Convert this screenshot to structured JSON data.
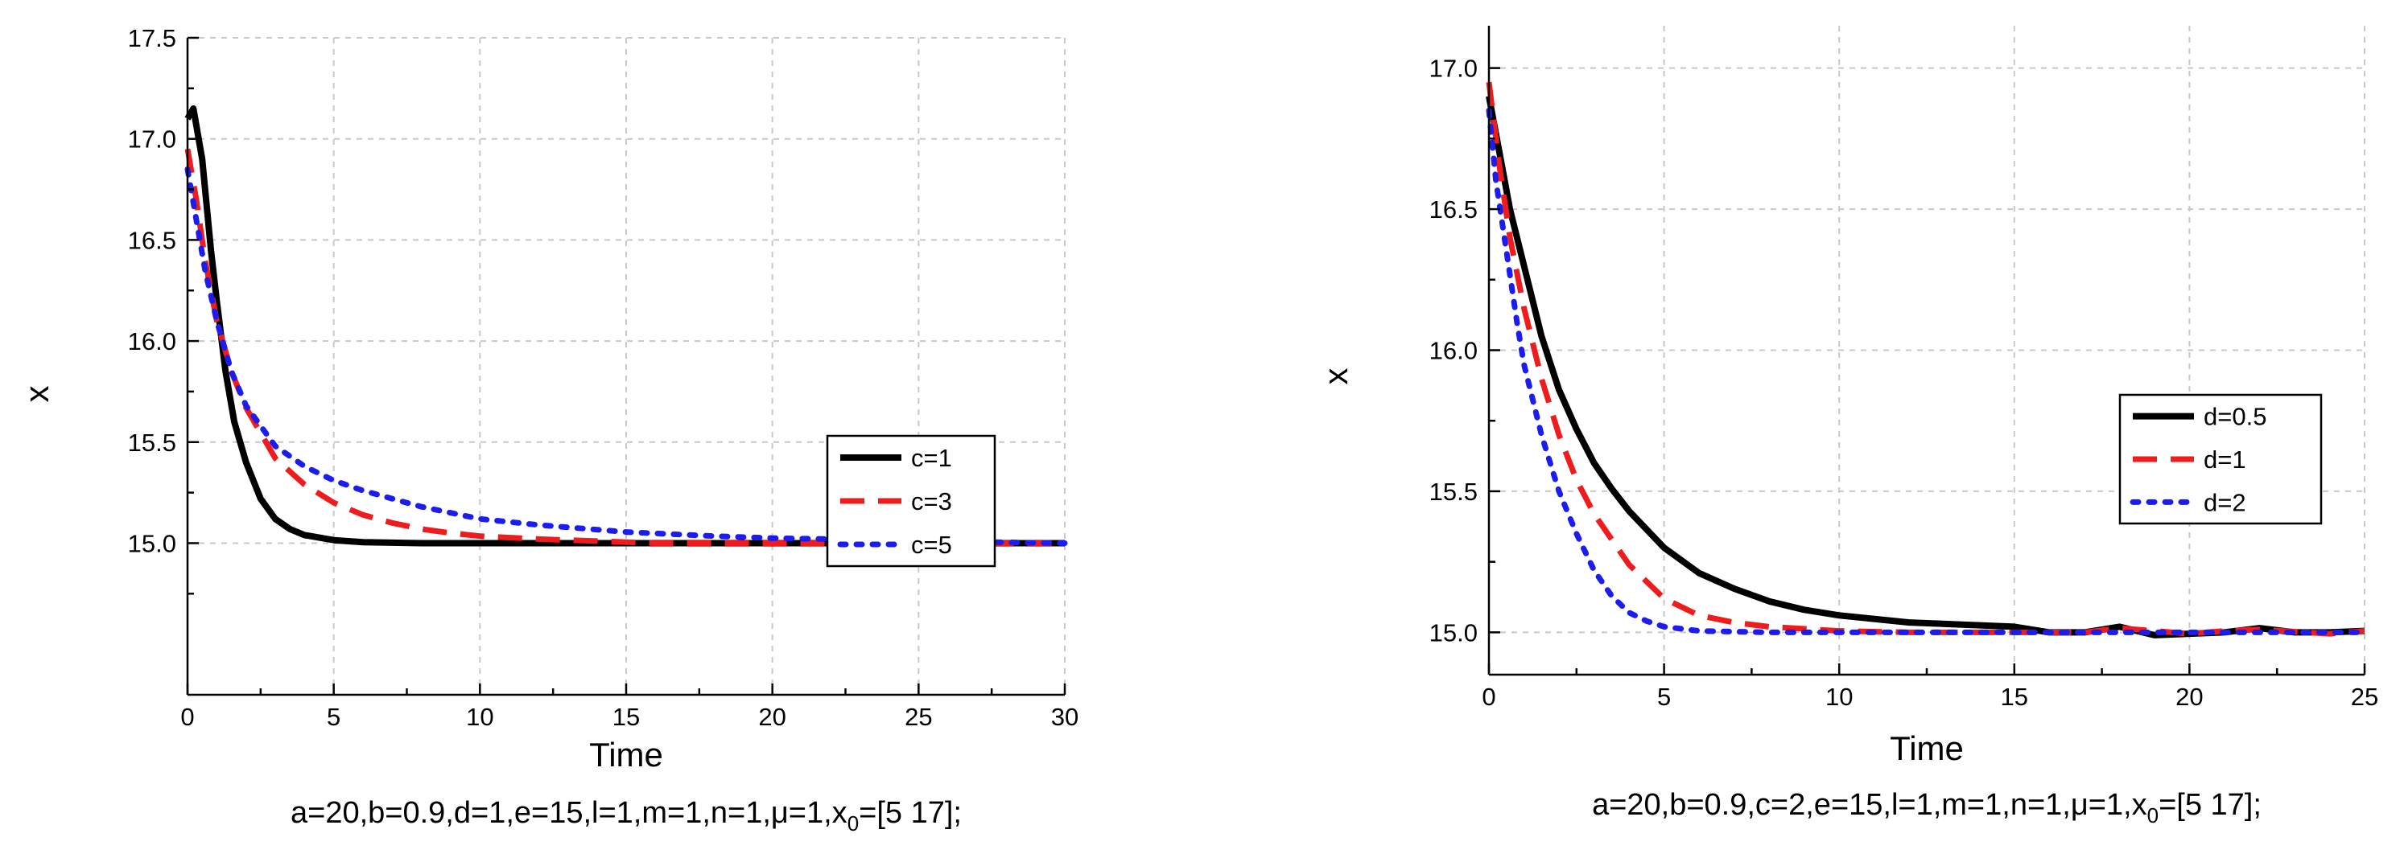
{
  "chart_data": [
    {
      "type": "line",
      "id": "left",
      "xlabel": "Time",
      "ylabel": "x",
      "xlim": [
        0,
        30
      ],
      "ylim": [
        14.25,
        17.5
      ],
      "xticks": [
        0,
        5,
        10,
        15,
        20,
        25,
        30
      ],
      "yticks": [
        15.0,
        15.5,
        16.0,
        16.5,
        17.0,
        17.5
      ],
      "ytick_labels": [
        "15.0",
        "15.5",
        "16.0",
        "16.5",
        "17.0",
        "17.5"
      ],
      "caption": {
        "text": "a=20,b=0.9,d=1,e=15,l=1,m=1,n=1,μ=1,x",
        "sub": "0",
        "tail": "=[5 17];"
      },
      "legend": {
        "position": "center-right"
      },
      "series": [
        {
          "name": "c=1",
          "color": "#000000",
          "style": "solid",
          "x": [
            0,
            0.2,
            0.5,
            0.8,
            1.0,
            1.3,
            1.6,
            2.0,
            2.5,
            3.0,
            3.5,
            4.0,
            5.0,
            6.0,
            8.0,
            10,
            15,
            20,
            25,
            30
          ],
          "y": [
            17.1,
            17.15,
            16.9,
            16.45,
            16.2,
            15.85,
            15.6,
            15.4,
            15.22,
            15.12,
            15.07,
            15.04,
            15.015,
            15.005,
            15.0,
            15.0,
            15.0,
            15.0,
            15.0,
            15.0
          ]
        },
        {
          "name": "c=3",
          "color": "#ee1c1c",
          "style": "dashed",
          "x": [
            0,
            0.3,
            0.6,
            1.0,
            1.5,
            2.0,
            3.0,
            4.0,
            5.0,
            6.0,
            7.0,
            8.0,
            9.0,
            10,
            12,
            14,
            16,
            20,
            25,
            30
          ],
          "y": [
            16.95,
            16.7,
            16.4,
            16.1,
            15.85,
            15.67,
            15.42,
            15.29,
            15.2,
            15.14,
            15.1,
            15.07,
            15.05,
            15.035,
            15.02,
            15.01,
            15.0,
            15.0,
            15.0,
            15.0
          ]
        },
        {
          "name": "c=5",
          "color": "#1c1cee",
          "style": "dotted",
          "x": [
            0,
            0.3,
            0.6,
            1.0,
            1.5,
            2.0,
            3.0,
            4.0,
            5.0,
            6.0,
            8.0,
            10,
            12,
            15,
            18,
            20,
            22,
            25,
            30
          ],
          "y": [
            16.85,
            16.6,
            16.35,
            16.1,
            15.85,
            15.68,
            15.48,
            15.38,
            15.31,
            15.26,
            15.18,
            15.12,
            15.09,
            15.055,
            15.035,
            15.025,
            15.02,
            15.01,
            15.0
          ]
        }
      ]
    },
    {
      "type": "line",
      "id": "right",
      "xlabel": "Time",
      "ylabel": "x",
      "xlim": [
        0,
        25
      ],
      "ylim": [
        14.85,
        17.15
      ],
      "xticks": [
        0,
        5,
        10,
        15,
        20,
        25
      ],
      "yticks": [
        15.0,
        15.5,
        16.0,
        16.5,
        17.0
      ],
      "ytick_labels": [
        "15.0",
        "15.5",
        "16.0",
        "16.5",
        "17.0"
      ],
      "caption": {
        "text": "a=20,b=0.9,c=2,e=15,l=1,m=1,n=1,μ=1,x",
        "sub": "0",
        "tail": "=[5 17];"
      },
      "legend": {
        "position": "center-right"
      },
      "series": [
        {
          "name": "d=0.5",
          "color": "#000000",
          "style": "solid",
          "x": [
            0,
            0.3,
            0.6,
            1.0,
            1.5,
            2.0,
            2.5,
            3.0,
            3.5,
            4.0,
            5.0,
            6.0,
            7.0,
            8.0,
            9.0,
            10,
            12,
            14,
            15,
            16,
            17,
            18,
            19,
            20,
            21,
            22,
            23,
            24,
            25
          ],
          "y": [
            16.9,
            16.7,
            16.5,
            16.3,
            16.05,
            15.86,
            15.72,
            15.6,
            15.51,
            15.43,
            15.3,
            15.21,
            15.155,
            15.11,
            15.08,
            15.06,
            15.035,
            15.025,
            15.02,
            15.0,
            15.0,
            15.02,
            14.99,
            14.995,
            15.0,
            15.015,
            15.0,
            15.0,
            15.005
          ]
        },
        {
          "name": "d=1",
          "color": "#ee1c1c",
          "style": "dashed",
          "x": [
            0,
            0.3,
            0.6,
            1.0,
            1.5,
            2.0,
            2.5,
            3.0,
            4.0,
            5.0,
            6.0,
            7.0,
            8.0,
            10,
            12,
            15,
            17,
            18,
            20,
            21,
            22,
            24,
            25
          ],
          "y": [
            16.95,
            16.65,
            16.4,
            16.15,
            15.9,
            15.7,
            15.54,
            15.42,
            15.24,
            15.12,
            15.06,
            15.035,
            15.02,
            15.005,
            15.0,
            15.0,
            15.0,
            15.015,
            14.995,
            15.005,
            15.01,
            14.995,
            15.005
          ]
        },
        {
          "name": "d=2",
          "color": "#1c1cee",
          "style": "dotted",
          "x": [
            0,
            0.2,
            0.5,
            0.8,
            1.0,
            1.5,
            2.0,
            2.5,
            3.0,
            3.5,
            4.0,
            4.5,
            5.0,
            6.0,
            8.0,
            10,
            15,
            20,
            25
          ],
          "y": [
            16.85,
            16.6,
            16.35,
            16.1,
            15.95,
            15.7,
            15.5,
            15.35,
            15.22,
            15.13,
            15.07,
            15.04,
            15.02,
            15.005,
            15.0,
            15.0,
            15.0,
            15.0,
            15.0
          ]
        }
      ]
    }
  ]
}
